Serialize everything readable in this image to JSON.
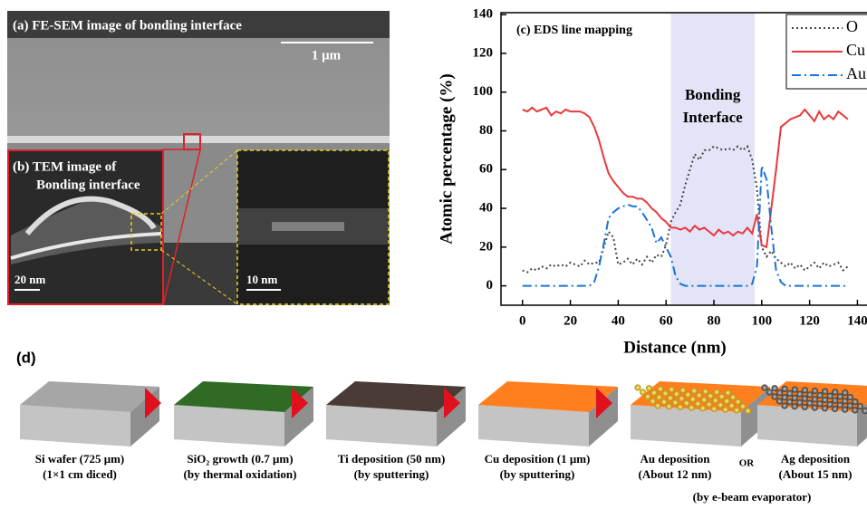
{
  "images": {
    "sem_title": "(a) FE-SEM image of bonding interface",
    "sem_scale": "1 μm",
    "tem_title": [
      "(b) TEM image of",
      "Bonding interface"
    ],
    "tem_scale": "20 nm",
    "zoom_scale": "10 nm"
  },
  "chart_data": {
    "type": "line",
    "title": "(c) EDS line mapping",
    "xlabel": "Distance (nm)",
    "ylabel": "Atomic percentage (%)",
    "xlim": [
      -9,
      144
    ],
    "ylim": [
      -10,
      141
    ],
    "xticks": [
      0,
      20,
      40,
      60,
      80,
      100,
      120,
      140
    ],
    "yticks": [
      0,
      20,
      40,
      60,
      80,
      100,
      120,
      140
    ],
    "highlight": {
      "x": [
        62,
        97
      ],
      "color": "#e4e4f8"
    },
    "annotation": [
      "Bonding",
      "Interface"
    ],
    "legend": "upper right",
    "x": [
      0,
      2,
      4,
      6,
      8,
      10,
      12,
      14,
      16,
      18,
      20,
      22,
      24,
      26,
      28,
      30,
      32,
      34,
      36,
      38,
      40,
      42,
      44,
      46,
      48,
      50,
      52,
      54,
      56,
      58,
      60,
      62,
      64,
      66,
      68,
      70,
      72,
      74,
      76,
      78,
      80,
      82,
      84,
      86,
      88,
      90,
      92,
      94,
      96,
      98,
      100,
      102,
      104,
      106,
      108,
      110,
      112,
      114,
      116,
      118,
      120,
      122,
      124,
      126,
      128,
      130,
      132,
      134,
      136
    ],
    "series": [
      {
        "name": "O",
        "color": "#444444",
        "style": "dotted",
        "values": [
          8,
          7,
          9,
          8,
          10,
          9,
          11,
          10,
          11,
          10,
          12,
          11,
          10,
          13,
          11,
          12,
          12,
          20,
          28,
          25,
          11,
          12,
          14,
          11,
          14,
          11,
          15,
          12,
          16,
          15,
          21,
          33,
          38,
          42,
          52,
          60,
          68,
          65,
          70,
          70,
          72,
          71,
          70,
          71,
          70,
          72,
          70,
          72,
          65,
          50,
          20,
          15,
          18,
          14,
          12,
          10,
          12,
          9,
          11,
          8,
          10,
          12,
          9,
          12,
          10,
          11,
          12,
          8,
          10
        ]
      },
      {
        "name": "Cu",
        "color": "#e8383d",
        "style": "solid",
        "values": [
          91,
          90,
          92,
          90,
          91,
          92,
          88,
          90,
          89,
          91,
          90,
          90,
          90,
          89,
          87,
          82,
          75,
          66,
          58,
          54,
          51,
          48,
          46,
          46,
          45,
          45,
          43,
          40,
          38,
          35,
          33,
          30,
          30,
          29,
          30,
          28,
          31,
          29,
          30,
          28,
          26,
          29,
          27,
          28,
          26,
          28,
          27,
          30,
          27,
          37,
          21,
          20,
          40,
          60,
          82,
          84,
          86,
          87,
          88,
          91,
          88,
          85,
          90,
          86,
          88,
          86,
          90,
          88,
          86
        ]
      },
      {
        "name": "Au",
        "color": "#1a73d9",
        "style": "dashdot",
        "values": [
          0,
          0,
          0,
          0,
          0,
          0,
          0,
          0,
          0,
          0,
          0,
          0,
          0,
          0,
          0,
          2,
          10,
          22,
          35,
          38,
          40,
          41,
          42,
          41,
          41,
          38,
          34,
          30,
          22,
          25,
          20,
          15,
          5,
          1,
          0,
          0,
          0,
          0,
          0,
          0,
          0,
          0,
          0,
          0,
          0,
          0,
          0,
          0,
          1,
          10,
          62,
          55,
          30,
          8,
          2,
          0,
          0,
          0,
          0,
          0,
          0,
          0,
          0,
          0,
          0,
          0,
          0,
          0,
          0
        ]
      }
    ]
  },
  "process": {
    "label": "(d)",
    "steps": [
      {
        "caption": [
          "Si wafer (725 μm)",
          "(1×1 cm diced)"
        ]
      },
      {
        "caption": [
          "SiO₂ growth (0.7 μm)",
          "(by thermal oxidation)"
        ]
      },
      {
        "caption": [
          "Ti deposition (50 nm)",
          "(by sputtering)"
        ]
      },
      {
        "caption": [
          "Cu deposition (1 μm)",
          "(by sputtering)"
        ]
      },
      {
        "caption": [
          "Au deposition",
          "(About 12 nm)"
        ]
      },
      {
        "caption": [
          "Ag deposition",
          "(About 15 nm)"
        ]
      }
    ],
    "or": "OR",
    "method": "(by e-beam evaporator)"
  }
}
